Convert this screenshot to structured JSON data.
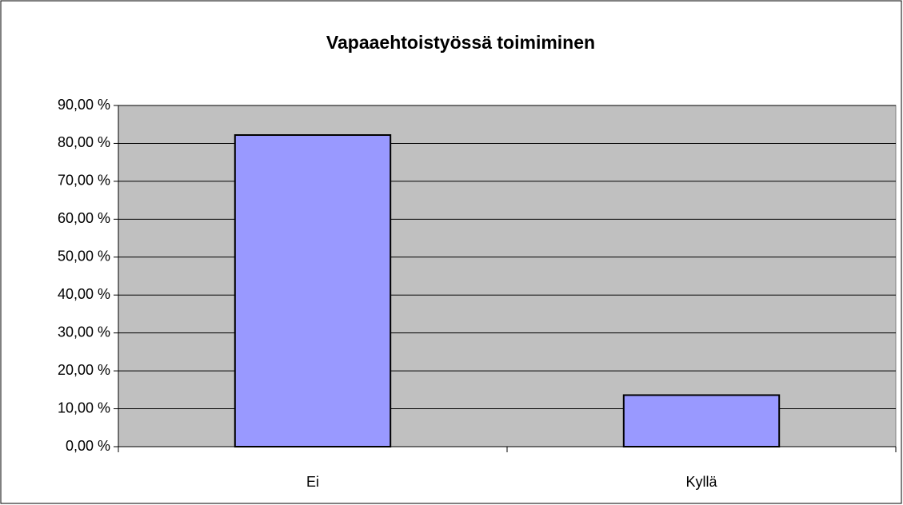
{
  "chart_data": {
    "type": "bar",
    "title": "Vapaaehtoistyössä toimiminen",
    "categories": [
      "Ei",
      "Kyllä"
    ],
    "values": [
      82.2,
      13.6
    ],
    "color": "#9999ff",
    "ylim": [
      0,
      90
    ],
    "yticks": [
      {
        "value": 0,
        "label": "0,00 %"
      },
      {
        "value": 10,
        "label": "10,00 %"
      },
      {
        "value": 20,
        "label": "20,00 %"
      },
      {
        "value": 30,
        "label": "30,00 %"
      },
      {
        "value": 40,
        "label": "40,00 %"
      },
      {
        "value": 50,
        "label": "50,00 %"
      },
      {
        "value": 60,
        "label": "60,00 %"
      },
      {
        "value": 70,
        "label": "70,00 %"
      },
      {
        "value": 80,
        "label": "80,00 %"
      },
      {
        "value": 90,
        "label": "90,00 %"
      }
    ],
    "grid": true
  }
}
